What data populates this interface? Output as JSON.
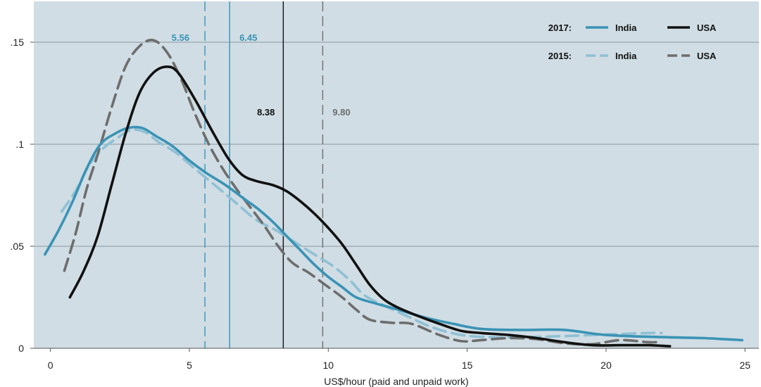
{
  "chart_data": {
    "type": "line",
    "title": "",
    "xlabel": "US$/hour (paid and unpaid work)",
    "ylabel": "",
    "xlim": [
      -0.6,
      25.5
    ],
    "ylim": [
      0,
      0.17
    ],
    "x_ticks": [
      0,
      5,
      10,
      15,
      20,
      25
    ],
    "x_tick_labels": [
      "0",
      "5",
      "10",
      "15",
      "20",
      "25"
    ],
    "y_ticks": [
      0,
      0.05,
      0.1,
      0.15
    ],
    "y_tick_labels": [
      "0",
      ".05",
      ".1",
      ".15"
    ],
    "grid": "horizontal",
    "colors": {
      "background": "#d0dde4",
      "grid": "#8a98a0",
      "india_2017": "#3a93b5",
      "usa_2017": "#111111",
      "india_2015": "#8fc0d4",
      "usa_2015": "#6d6d6d"
    },
    "legend": {
      "position": "top-right",
      "rows": [
        {
          "year_label": "2017:",
          "entries": [
            {
              "label": "India",
              "series": "india_2017"
            },
            {
              "label": "USA",
              "series": "usa_2017"
            }
          ]
        },
        {
          "year_label": "2015:",
          "entries": [
            {
              "label": "India",
              "series": "india_2015"
            },
            {
              "label": "USA",
              "series": "usa_2015"
            }
          ]
        }
      ]
    },
    "series": [
      {
        "key": "india_2017",
        "year": "2017",
        "name": "India",
        "color": "#3a93b5",
        "dash": "solid",
        "points": [
          [
            -0.2,
            0.046
          ],
          [
            0.3,
            0.058
          ],
          [
            0.8,
            0.072
          ],
          [
            1.3,
            0.088
          ],
          [
            1.8,
            0.1
          ],
          [
            2.3,
            0.105
          ],
          [
            2.8,
            0.108
          ],
          [
            3.3,
            0.108
          ],
          [
            3.8,
            0.104
          ],
          [
            4.4,
            0.099
          ],
          [
            5,
            0.092
          ],
          [
            5.6,
            0.086
          ],
          [
            6.3,
            0.08
          ],
          [
            7,
            0.073
          ],
          [
            7.5,
            0.068
          ],
          [
            8,
            0.062
          ],
          [
            8.5,
            0.055
          ],
          [
            9,
            0.048
          ],
          [
            9.5,
            0.041
          ],
          [
            10,
            0.035
          ],
          [
            10.5,
            0.03
          ],
          [
            11,
            0.025
          ],
          [
            11.7,
            0.022
          ],
          [
            12.5,
            0.019
          ],
          [
            13.5,
            0.015
          ],
          [
            14.5,
            0.012
          ],
          [
            15.5,
            0.0095
          ],
          [
            17,
            0.009
          ],
          [
            18.5,
            0.009
          ],
          [
            20,
            0.0065
          ],
          [
            22,
            0.0055
          ],
          [
            23.5,
            0.005
          ],
          [
            24.9,
            0.004
          ]
        ]
      },
      {
        "key": "usa_2017",
        "year": "2017",
        "name": "USA",
        "color": "#111111",
        "dash": "solid",
        "points": [
          [
            0.7,
            0.025
          ],
          [
            1.2,
            0.038
          ],
          [
            1.7,
            0.055
          ],
          [
            2.2,
            0.08
          ],
          [
            2.7,
            0.105
          ],
          [
            3.2,
            0.125
          ],
          [
            3.7,
            0.135
          ],
          [
            4.2,
            0.138
          ],
          [
            4.6,
            0.135
          ],
          [
            5.2,
            0.122
          ],
          [
            5.8,
            0.107
          ],
          [
            6.4,
            0.093
          ],
          [
            6.9,
            0.085
          ],
          [
            7.4,
            0.082
          ],
          [
            8,
            0.08
          ],
          [
            8.5,
            0.077
          ],
          [
            9,
            0.072
          ],
          [
            9.5,
            0.066
          ],
          [
            10,
            0.059
          ],
          [
            10.5,
            0.051
          ],
          [
            11,
            0.041
          ],
          [
            11.5,
            0.031
          ],
          [
            12,
            0.024
          ],
          [
            12.5,
            0.02
          ],
          [
            13.2,
            0.016
          ],
          [
            14,
            0.012
          ],
          [
            14.8,
            0.0085
          ],
          [
            15.5,
            0.0075
          ],
          [
            16.5,
            0.0065
          ],
          [
            17.5,
            0.005
          ],
          [
            18.5,
            0.003
          ],
          [
            19.5,
            0.0015
          ],
          [
            20.5,
            0.0015
          ],
          [
            21.5,
            0.0015
          ],
          [
            22.3,
            0.001
          ]
        ]
      },
      {
        "key": "india_2015",
        "year": "2015",
        "name": "India",
        "color": "#8fc0d4",
        "dash": "dashed",
        "points": [
          [
            0.4,
            0.067
          ],
          [
            0.9,
            0.077
          ],
          [
            1.4,
            0.09
          ],
          [
            1.9,
            0.098
          ],
          [
            2.4,
            0.103
          ],
          [
            2.9,
            0.107
          ],
          [
            3.4,
            0.106
          ],
          [
            3.9,
            0.101
          ],
          [
            4.5,
            0.096
          ],
          [
            5.2,
            0.088
          ],
          [
            6,
            0.079
          ],
          [
            6.7,
            0.071
          ],
          [
            7.4,
            0.063
          ],
          [
            8.1,
            0.058
          ],
          [
            8.8,
            0.052
          ],
          [
            9.5,
            0.046
          ],
          [
            10.2,
            0.04
          ],
          [
            10.8,
            0.033
          ],
          [
            11.3,
            0.026
          ],
          [
            12,
            0.021
          ],
          [
            12.8,
            0.016
          ],
          [
            13.8,
            0.01
          ],
          [
            14.8,
            0.0065
          ],
          [
            15.8,
            0.0055
          ],
          [
            17,
            0.0055
          ],
          [
            18.5,
            0.006
          ],
          [
            19.5,
            0.0065
          ],
          [
            20.5,
            0.007
          ],
          [
            21.5,
            0.0075
          ],
          [
            22,
            0.0075
          ]
        ]
      },
      {
        "key": "usa_2015",
        "year": "2015",
        "name": "USA",
        "color": "#6d6d6d",
        "dash": "dashed",
        "points": [
          [
            0.5,
            0.038
          ],
          [
            0.9,
            0.056
          ],
          [
            1.3,
            0.078
          ],
          [
            1.7,
            0.095
          ],
          [
            2.2,
            0.118
          ],
          [
            2.7,
            0.138
          ],
          [
            3.2,
            0.148
          ],
          [
            3.7,
            0.151
          ],
          [
            4.2,
            0.145
          ],
          [
            4.7,
            0.132
          ],
          [
            5.2,
            0.115
          ],
          [
            5.7,
            0.1
          ],
          [
            6.2,
            0.088
          ],
          [
            6.7,
            0.078
          ],
          [
            7.2,
            0.069
          ],
          [
            7.7,
            0.06
          ],
          [
            8.2,
            0.05
          ],
          [
            8.7,
            0.042
          ],
          [
            9.3,
            0.037
          ],
          [
            9.9,
            0.031
          ],
          [
            10.5,
            0.025
          ],
          [
            11,
            0.019
          ],
          [
            11.5,
            0.014
          ],
          [
            12.3,
            0.0125
          ],
          [
            13,
            0.012
          ],
          [
            14,
            0.0065
          ],
          [
            14.8,
            0.0035
          ],
          [
            15.5,
            0.004
          ],
          [
            16.5,
            0.005
          ],
          [
            17.5,
            0.0045
          ],
          [
            18.5,
            0.0025
          ],
          [
            19.5,
            0.002
          ],
          [
            20.5,
            0.004
          ],
          [
            21.5,
            0.003
          ],
          [
            21.8,
            0.003
          ]
        ]
      }
    ],
    "reference_lines": [
      {
        "x": 5.56,
        "label": "5.56",
        "color": "#3a93b5",
        "dash": "dashed",
        "label_color": "#3a93b5"
      },
      {
        "x": 6.45,
        "label": "6.45",
        "color": "#3a93b5",
        "dash": "solid",
        "label_color": "#3a93b5"
      },
      {
        "x": 8.38,
        "label": "8.38",
        "color": "#111111",
        "dash": "solid",
        "label_color": "#111111"
      },
      {
        "x": 9.8,
        "label": "9.80",
        "color": "#6d6d6d",
        "dash": "dashed",
        "label_color": "#6d6d6d"
      }
    ]
  }
}
